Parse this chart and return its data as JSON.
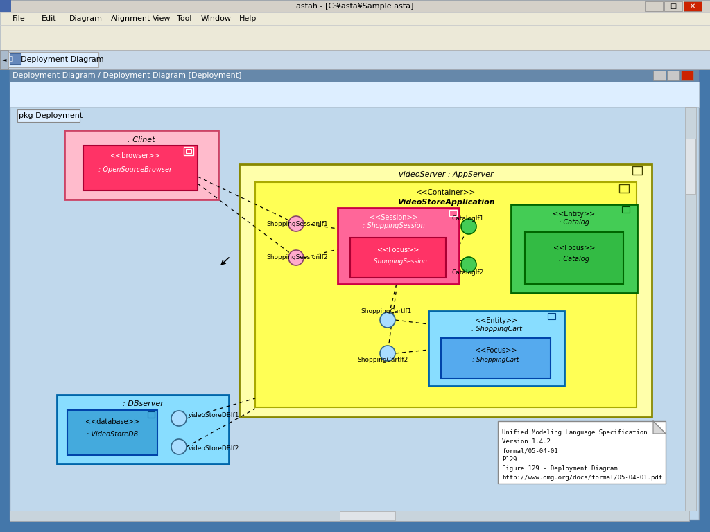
{
  "title": "astah - [C:¥asta¥Sample.asta]",
  "diagram_title": "Deployment Diagram / Deployment Diagram [Deployment]",
  "tab_label": "Deployment Diagram",
  "pkg_label": "pkg Deployment",
  "note_text": [
    "Unified Modeling Language Specification",
    "Version 1.4.2",
    "formal/05-04-01",
    "P129",
    "Figure 129 - Deployment Diagram",
    "http://www.omg.org/docs/formal/05-04-01.pdf"
  ],
  "colors": {
    "titlebar": "#d4d0c8",
    "menubar": "#ece9d8",
    "toolbar_bg": "#ece9d8",
    "tab_bg": "#c8d8e8",
    "canvas_bg": "#c0d8ec",
    "diagram_title_bg": "#6688aa",
    "inner_toolbar_bg": "#ddeeff",
    "scrollbar": "#c0c8d0",
    "clinet_outer": "#ffbbcc",
    "clinet_border": "#cc4466",
    "clinet_inner": "#ff3366",
    "clinet_inner_border": "#aa0033",
    "appserver_outer": "#ffffaa",
    "appserver_border": "#888800",
    "container_inner": "#ffff55",
    "container_border": "#aaaa00",
    "session_box": "#ff6699",
    "session_border": "#cc0044",
    "session_focus": "#ff3366",
    "session_focus_border": "#aa0033",
    "catalog_box": "#44cc55",
    "catalog_border": "#006600",
    "catalog_focus": "#33bb44",
    "catalog_focus_border": "#006600",
    "cart_box": "#88ddff",
    "cart_border": "#0066aa",
    "cart_focus": "#55aaee",
    "cart_focus_border": "#0044aa",
    "dbserver_box": "#88ddff",
    "dbserver_border": "#0066aa",
    "dbserver_inner": "#44aadd",
    "dbserver_inner_border": "#0044aa",
    "session_circle": "#ffaacc",
    "catalog_circle": "#44cc55",
    "cart_circle": "#aaddff",
    "db_circle": "#aaddff"
  }
}
